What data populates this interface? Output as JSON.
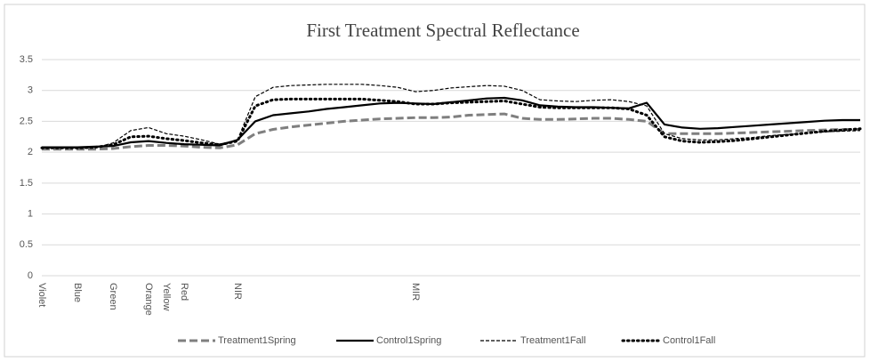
{
  "chart_data": {
    "type": "line",
    "title": "First Treatment Spectral Reflectance",
    "categories": [
      "Violet",
      null,
      "Blue",
      null,
      "Green",
      null,
      "Orange",
      "Yellow",
      "Red",
      null,
      null,
      "NIR",
      null,
      null,
      null,
      null,
      null,
      null,
      null,
      null,
      null,
      "MIR",
      null,
      null,
      null,
      null,
      null,
      null,
      null,
      null,
      null,
      null,
      null,
      null,
      null,
      null,
      null,
      null,
      null,
      null,
      null,
      null,
      null,
      null,
      null,
      null,
      null
    ],
    "series": [
      {
        "name": "Treatment1Spring",
        "color": "#7f7f7f",
        "values": [
          2.05,
          2.05,
          2.05,
          2.05,
          2.06,
          2.09,
          2.11,
          2.11,
          2.1,
          2.08,
          2.07,
          2.12,
          2.3,
          2.37,
          2.41,
          2.44,
          2.47,
          2.5,
          2.52,
          2.54,
          2.55,
          2.56,
          2.56,
          2.57,
          2.6,
          2.61,
          2.62,
          2.55,
          2.53,
          2.53,
          2.54,
          2.55,
          2.55,
          2.53,
          2.5,
          2.3,
          2.3,
          2.3,
          2.3,
          2.31,
          2.32,
          2.33,
          2.34,
          2.35,
          2.36,
          2.37,
          2.37
        ]
      },
      {
        "name": "Control1Spring",
        "color": "#000000",
        "values": [
          2.08,
          2.08,
          2.08,
          2.09,
          2.1,
          2.16,
          2.18,
          2.15,
          2.13,
          2.12,
          2.11,
          2.2,
          2.5,
          2.6,
          2.63,
          2.66,
          2.7,
          2.73,
          2.76,
          2.79,
          2.8,
          2.79,
          2.78,
          2.81,
          2.84,
          2.87,
          2.88,
          2.84,
          2.76,
          2.74,
          2.73,
          2.73,
          2.72,
          2.71,
          2.8,
          2.45,
          2.4,
          2.38,
          2.39,
          2.41,
          2.43,
          2.45,
          2.47,
          2.49,
          2.51,
          2.52,
          2.52
        ]
      },
      {
        "name": "Treatment1Fall",
        "color": "#000000",
        "values": [
          2.07,
          2.07,
          2.07,
          2.07,
          2.15,
          2.35,
          2.4,
          2.3,
          2.26,
          2.2,
          2.13,
          2.2,
          2.9,
          3.05,
          3.08,
          3.09,
          3.1,
          3.1,
          3.1,
          3.08,
          3.05,
          2.98,
          3.0,
          3.04,
          3.06,
          3.08,
          3.07,
          3.0,
          2.85,
          2.83,
          2.82,
          2.84,
          2.85,
          2.82,
          2.75,
          2.3,
          2.22,
          2.2,
          2.2,
          2.22,
          2.24,
          2.27,
          2.29,
          2.31,
          2.33,
          2.34,
          2.35
        ]
      },
      {
        "name": "Control1Fall",
        "color": "#000000",
        "values": [
          2.07,
          2.07,
          2.07,
          2.08,
          2.12,
          2.25,
          2.26,
          2.22,
          2.19,
          2.15,
          2.12,
          2.18,
          2.75,
          2.85,
          2.86,
          2.86,
          2.86,
          2.86,
          2.86,
          2.84,
          2.82,
          2.78,
          2.78,
          2.8,
          2.81,
          2.82,
          2.83,
          2.78,
          2.73,
          2.72,
          2.72,
          2.72,
          2.72,
          2.7,
          2.6,
          2.25,
          2.18,
          2.16,
          2.17,
          2.19,
          2.22,
          2.25,
          2.28,
          2.31,
          2.34,
          2.36,
          2.38
        ]
      }
    ],
    "ylim": [
      0,
      3.5
    ],
    "yticks": [
      0,
      0.5,
      1,
      1.5,
      2,
      2.5,
      3,
      3.5
    ],
    "grid": true,
    "legend": "bottom"
  }
}
